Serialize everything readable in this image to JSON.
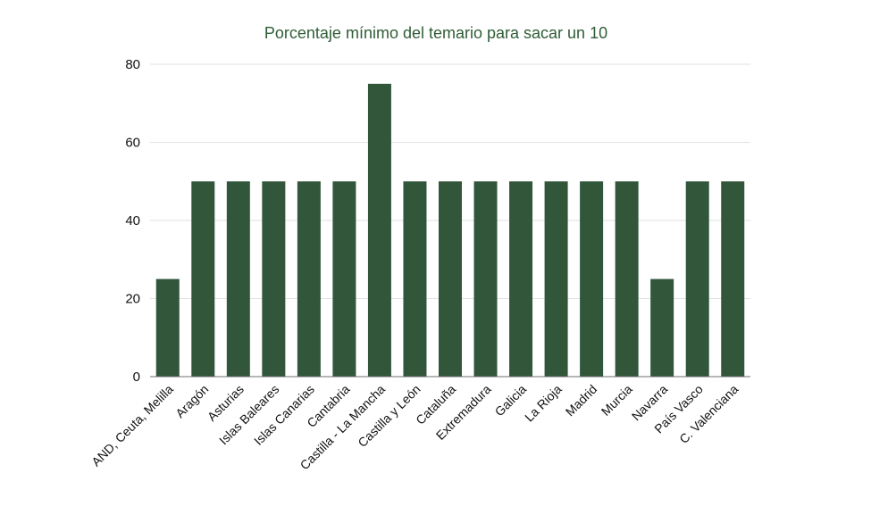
{
  "chart_data": {
    "type": "bar",
    "title": "Porcentaje mínimo del temario para sacar un 10",
    "xlabel": "",
    "ylabel": "",
    "categories": [
      "AND, Ceuta, Melilla",
      "Aragón",
      "Asturias",
      "Islas Baleares",
      "Islas Canarias",
      "Cantabria",
      "Castilla - La Mancha",
      "Castilla y León",
      "Cataluña",
      "Extremadura",
      "Galicia",
      "La Rioja",
      "Madrid",
      "Murcia",
      "Navarra",
      "País Vasco",
      "C. Valenciana"
    ],
    "values": [
      25,
      50,
      50,
      50,
      50,
      50,
      75,
      50,
      50,
      50,
      50,
      50,
      50,
      50,
      25,
      50,
      50
    ],
    "ylim": [
      0,
      80
    ],
    "yticks": [
      "0",
      "20",
      "40",
      "60",
      "80"
    ],
    "grid": true,
    "legend": "none",
    "bar_color": "#31563a",
    "title_color": "#2f5d36"
  }
}
